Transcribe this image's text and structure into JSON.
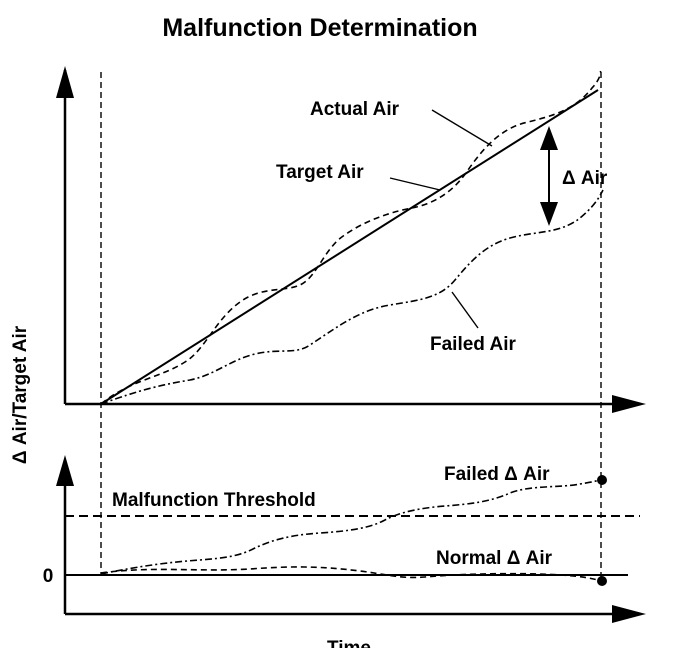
{
  "title": "Malfunction Determination",
  "y_axis_label": "Δ Air/Target Air",
  "x_axis_label": "Time",
  "upper_plot": {
    "actual_air_label": "Actual Air",
    "target_air_label": "Target Air",
    "delta_air_label": "Δ Air",
    "failed_air_label": "Failed Air"
  },
  "lower_plot": {
    "failed_delta_label": "Failed Δ Air",
    "threshold_label": "Malfunction Threshold",
    "normal_delta_label": "Normal Δ Air",
    "zero_tick": "0"
  }
}
